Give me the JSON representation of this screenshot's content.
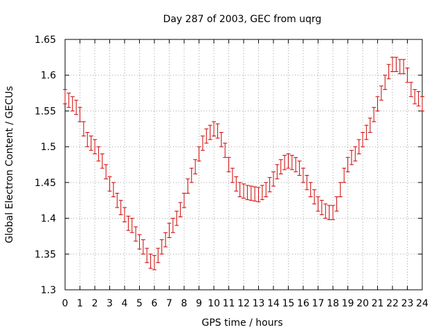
{
  "chart_data": {
    "type": "line",
    "title": "Day 287 of 2003, GEC from uqrg",
    "xlabel": "GPS time / hours",
    "ylabel": "Global Electron Content / GECUs",
    "xlim": [
      0,
      24
    ],
    "ylim": [
      1.3,
      1.65
    ],
    "xticks": [
      "0",
      "1",
      "2",
      "3",
      "4",
      "5",
      "6",
      "7",
      "8",
      "9",
      "10",
      "11",
      "12",
      "13",
      "14",
      "15",
      "16",
      "17",
      "18",
      "19",
      "20",
      "21",
      "22",
      "23",
      "24"
    ],
    "yticks": [
      "1.3",
      "1.35",
      "1.4",
      "1.45",
      "1.5",
      "1.55",
      "1.6",
      "1.65"
    ],
    "grid": true,
    "series": [
      {
        "color": "#cc0000",
        "marker": "errorbars",
        "error": 0.01,
        "x": [
          0,
          0.25,
          0.5,
          0.75,
          1,
          1.25,
          1.5,
          1.75,
          2,
          2.25,
          2.5,
          2.75,
          3,
          3.25,
          3.5,
          3.75,
          4,
          4.25,
          4.5,
          4.75,
          5,
          5.25,
          5.5,
          5.75,
          6,
          6.25,
          6.5,
          6.75,
          7,
          7.25,
          7.5,
          7.75,
          8,
          8.25,
          8.5,
          8.75,
          9,
          9.25,
          9.5,
          9.75,
          10,
          10.25,
          10.5,
          10.75,
          11,
          11.25,
          11.5,
          11.75,
          12,
          12.25,
          12.5,
          12.75,
          13,
          13.25,
          13.5,
          13.75,
          14,
          14.25,
          14.5,
          14.75,
          15,
          15.25,
          15.5,
          15.75,
          16,
          16.25,
          16.5,
          16.75,
          17,
          17.25,
          17.5,
          17.75,
          18,
          18.25,
          18.5,
          18.75,
          19,
          19.25,
          19.5,
          19.75,
          20,
          20.25,
          20.5,
          20.75,
          21,
          21.25,
          21.5,
          21.75,
          22,
          22.25,
          22.5,
          22.75,
          23,
          23.25,
          23.5,
          23.75,
          24
        ],
        "values": [
          1.57,
          1.565,
          1.56,
          1.555,
          1.545,
          1.525,
          1.51,
          1.505,
          1.5,
          1.49,
          1.48,
          1.465,
          1.448,
          1.44,
          1.425,
          1.415,
          1.405,
          1.393,
          1.39,
          1.378,
          1.367,
          1.36,
          1.348,
          1.34,
          1.338,
          1.348,
          1.36,
          1.37,
          1.383,
          1.39,
          1.4,
          1.412,
          1.425,
          1.445,
          1.46,
          1.472,
          1.49,
          1.505,
          1.515,
          1.52,
          1.525,
          1.522,
          1.51,
          1.495,
          1.475,
          1.46,
          1.448,
          1.44,
          1.438,
          1.436,
          1.435,
          1.434,
          1.433,
          1.436,
          1.44,
          1.447,
          1.455,
          1.465,
          1.472,
          1.478,
          1.48,
          1.478,
          1.475,
          1.47,
          1.46,
          1.45,
          1.44,
          1.43,
          1.42,
          1.415,
          1.41,
          1.408,
          1.408,
          1.42,
          1.44,
          1.46,
          1.475,
          1.485,
          1.49,
          1.5,
          1.51,
          1.52,
          1.53,
          1.545,
          1.56,
          1.575,
          1.59,
          1.605,
          1.615,
          1.615,
          1.612,
          1.612,
          1.6,
          1.58,
          1.57,
          1.567,
          1.56
        ]
      }
    ]
  }
}
